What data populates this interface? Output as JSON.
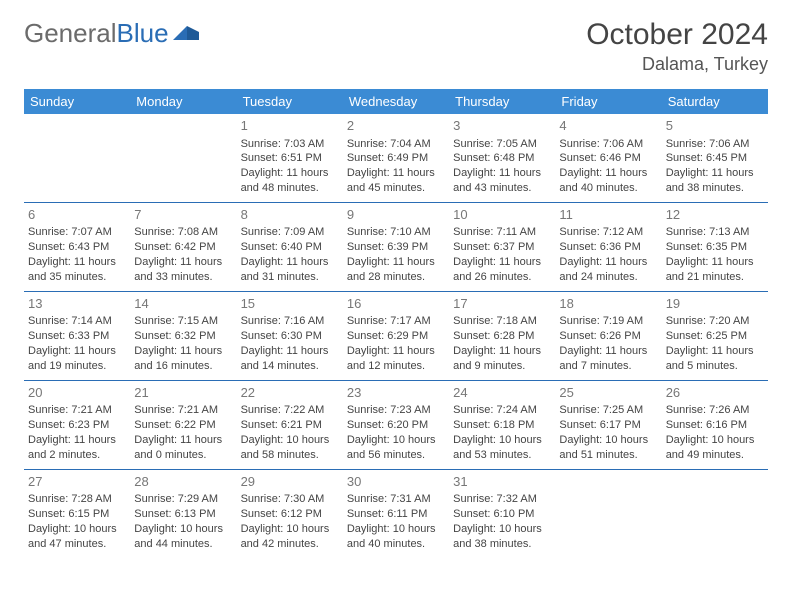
{
  "logo": {
    "text_gray": "General",
    "text_blue": "Blue"
  },
  "header": {
    "month_title": "October 2024",
    "location": "Dalama, Turkey"
  },
  "colors": {
    "header_bg": "#3b8bd4",
    "header_text": "#ffffff",
    "border": "#2a6db5",
    "daynum": "#777777",
    "body_text": "#444444",
    "logo_gray": "#6b6b6b",
    "logo_blue": "#2a6db5",
    "page_bg": "#ffffff"
  },
  "typography": {
    "month_title_size": 30,
    "location_size": 18,
    "weekday_size": 13,
    "daynum_size": 13,
    "cell_size": 11
  },
  "weekdays": [
    "Sunday",
    "Monday",
    "Tuesday",
    "Wednesday",
    "Thursday",
    "Friday",
    "Saturday"
  ],
  "grid": [
    [
      null,
      null,
      {
        "n": "1",
        "sr": "7:03 AM",
        "ss": "6:51 PM",
        "dl": "11 hours and 48 minutes."
      },
      {
        "n": "2",
        "sr": "7:04 AM",
        "ss": "6:49 PM",
        "dl": "11 hours and 45 minutes."
      },
      {
        "n": "3",
        "sr": "7:05 AM",
        "ss": "6:48 PM",
        "dl": "11 hours and 43 minutes."
      },
      {
        "n": "4",
        "sr": "7:06 AM",
        "ss": "6:46 PM",
        "dl": "11 hours and 40 minutes."
      },
      {
        "n": "5",
        "sr": "7:06 AM",
        "ss": "6:45 PM",
        "dl": "11 hours and 38 minutes."
      }
    ],
    [
      {
        "n": "6",
        "sr": "7:07 AM",
        "ss": "6:43 PM",
        "dl": "11 hours and 35 minutes."
      },
      {
        "n": "7",
        "sr": "7:08 AM",
        "ss": "6:42 PM",
        "dl": "11 hours and 33 minutes."
      },
      {
        "n": "8",
        "sr": "7:09 AM",
        "ss": "6:40 PM",
        "dl": "11 hours and 31 minutes."
      },
      {
        "n": "9",
        "sr": "7:10 AM",
        "ss": "6:39 PM",
        "dl": "11 hours and 28 minutes."
      },
      {
        "n": "10",
        "sr": "7:11 AM",
        "ss": "6:37 PM",
        "dl": "11 hours and 26 minutes."
      },
      {
        "n": "11",
        "sr": "7:12 AM",
        "ss": "6:36 PM",
        "dl": "11 hours and 24 minutes."
      },
      {
        "n": "12",
        "sr": "7:13 AM",
        "ss": "6:35 PM",
        "dl": "11 hours and 21 minutes."
      }
    ],
    [
      {
        "n": "13",
        "sr": "7:14 AM",
        "ss": "6:33 PM",
        "dl": "11 hours and 19 minutes."
      },
      {
        "n": "14",
        "sr": "7:15 AM",
        "ss": "6:32 PM",
        "dl": "11 hours and 16 minutes."
      },
      {
        "n": "15",
        "sr": "7:16 AM",
        "ss": "6:30 PM",
        "dl": "11 hours and 14 minutes."
      },
      {
        "n": "16",
        "sr": "7:17 AM",
        "ss": "6:29 PM",
        "dl": "11 hours and 12 minutes."
      },
      {
        "n": "17",
        "sr": "7:18 AM",
        "ss": "6:28 PM",
        "dl": "11 hours and 9 minutes."
      },
      {
        "n": "18",
        "sr": "7:19 AM",
        "ss": "6:26 PM",
        "dl": "11 hours and 7 minutes."
      },
      {
        "n": "19",
        "sr": "7:20 AM",
        "ss": "6:25 PM",
        "dl": "11 hours and 5 minutes."
      }
    ],
    [
      {
        "n": "20",
        "sr": "7:21 AM",
        "ss": "6:23 PM",
        "dl": "11 hours and 2 minutes."
      },
      {
        "n": "21",
        "sr": "7:21 AM",
        "ss": "6:22 PM",
        "dl": "11 hours and 0 minutes."
      },
      {
        "n": "22",
        "sr": "7:22 AM",
        "ss": "6:21 PM",
        "dl": "10 hours and 58 minutes."
      },
      {
        "n": "23",
        "sr": "7:23 AM",
        "ss": "6:20 PM",
        "dl": "10 hours and 56 minutes."
      },
      {
        "n": "24",
        "sr": "7:24 AM",
        "ss": "6:18 PM",
        "dl": "10 hours and 53 minutes."
      },
      {
        "n": "25",
        "sr": "7:25 AM",
        "ss": "6:17 PM",
        "dl": "10 hours and 51 minutes."
      },
      {
        "n": "26",
        "sr": "7:26 AM",
        "ss": "6:16 PM",
        "dl": "10 hours and 49 minutes."
      }
    ],
    [
      {
        "n": "27",
        "sr": "7:28 AM",
        "ss": "6:15 PM",
        "dl": "10 hours and 47 minutes."
      },
      {
        "n": "28",
        "sr": "7:29 AM",
        "ss": "6:13 PM",
        "dl": "10 hours and 44 minutes."
      },
      {
        "n": "29",
        "sr": "7:30 AM",
        "ss": "6:12 PM",
        "dl": "10 hours and 42 minutes."
      },
      {
        "n": "30",
        "sr": "7:31 AM",
        "ss": "6:11 PM",
        "dl": "10 hours and 40 minutes."
      },
      {
        "n": "31",
        "sr": "7:32 AM",
        "ss": "6:10 PM",
        "dl": "10 hours and 38 minutes."
      },
      null,
      null
    ]
  ],
  "labels": {
    "sunrise": "Sunrise: ",
    "sunset": "Sunset: ",
    "daylight": "Daylight: "
  }
}
